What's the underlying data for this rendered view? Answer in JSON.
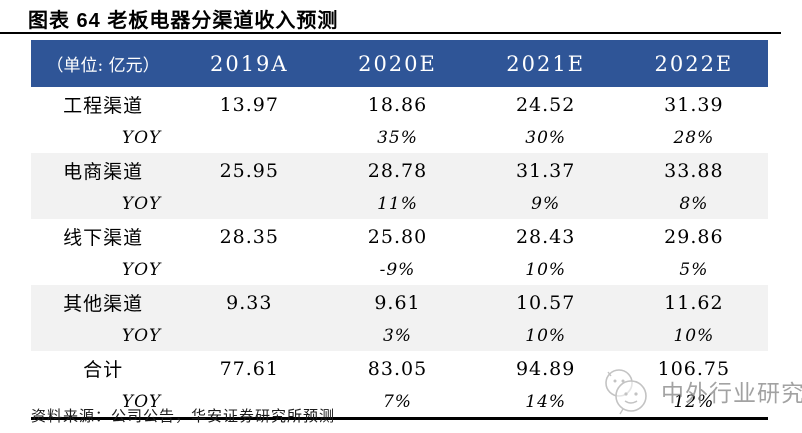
{
  "title": "图表  64 老板电器分渠道收入预测",
  "table": {
    "unit_label": "（单位: 亿元）",
    "columns": [
      "2019A",
      "2020E",
      "2021E",
      "2022E"
    ],
    "yoy_label": "YOY",
    "groups": [
      {
        "name": "工程渠道",
        "values": [
          "13.97",
          "18.86",
          "24.52",
          "31.39"
        ],
        "yoy": [
          "",
          "35%",
          "30%",
          "28%"
        ],
        "shaded": false
      },
      {
        "name": "电商渠道",
        "values": [
          "25.95",
          "28.78",
          "31.37",
          "33.88"
        ],
        "yoy": [
          "",
          "11%",
          "9%",
          "8%"
        ],
        "shaded": true
      },
      {
        "name": "线下渠道",
        "values": [
          "28.35",
          "25.80",
          "28.43",
          "29.86"
        ],
        "yoy": [
          "",
          "-9%",
          "10%",
          "5%"
        ],
        "shaded": false
      },
      {
        "name": "其他渠道",
        "values": [
          "9.33",
          "9.61",
          "10.57",
          "11.62"
        ],
        "yoy": [
          "",
          "3%",
          "10%",
          "10%"
        ],
        "shaded": true
      },
      {
        "name": "合计",
        "values": [
          "77.61",
          "83.05",
          "94.89",
          "106.75"
        ],
        "yoy": [
          "",
          "7%",
          "14%",
          "12%"
        ],
        "shaded": false
      }
    ]
  },
  "footer": {
    "source": "资料来源：公司公告，华安证券研究所预测"
  },
  "watermark": {
    "text": "中外行业研究",
    "icon": "chat-bubbles-logo-icon"
  },
  "colors": {
    "header_bg": "#2F5597",
    "header_text": "#FFFFFF",
    "shaded_row": "#F2F2F2",
    "rule": "#000000",
    "watermark_text": "#8C8C8C"
  }
}
